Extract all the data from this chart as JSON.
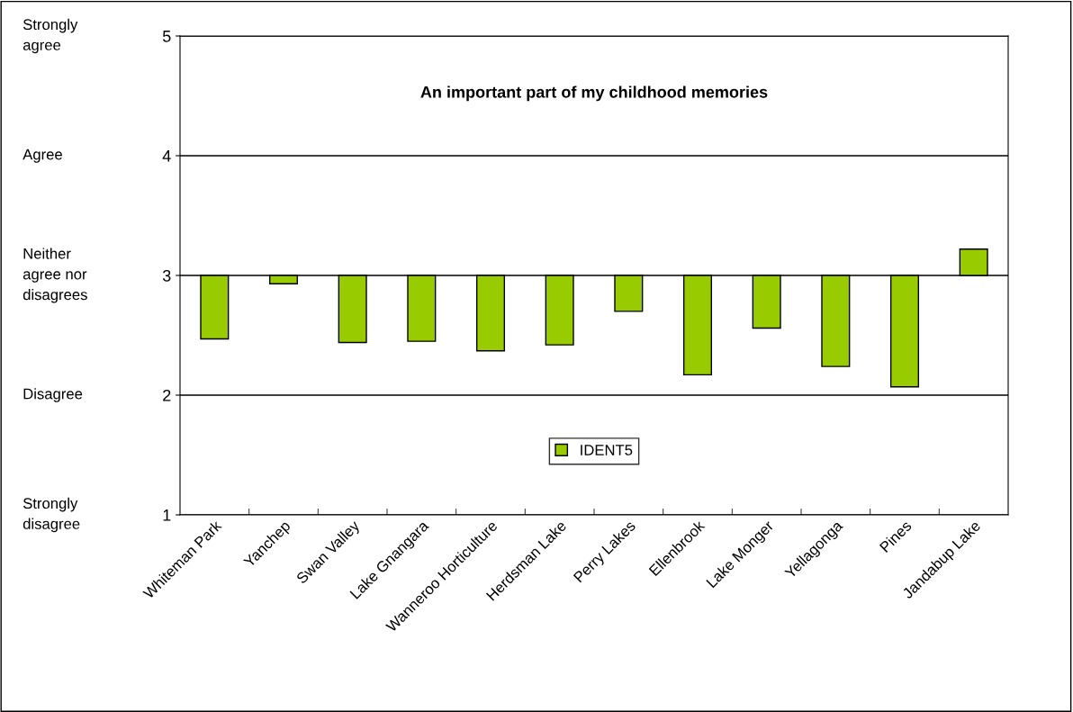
{
  "chart_data": {
    "type": "bar",
    "title": "An important part of my childhood memories",
    "categories": [
      "Whiteman Park",
      "Yanchep",
      "Swan Valley",
      "Lake Gnangara",
      "Wanneroo Horticulture",
      "Herdsman Lake",
      "Perry Lakes",
      "Ellenbrook",
      "Lake Monger",
      "Yellagonga",
      "Pines",
      "Jandabup Lake"
    ],
    "series": [
      {
        "name": "IDENT5",
        "color": "#99cc00",
        "base": [
          3,
          3,
          3,
          3,
          3,
          3,
          3,
          3,
          3,
          3,
          3,
          3
        ],
        "values": [
          -0.53,
          -0.07,
          -0.56,
          -0.55,
          -0.63,
          -0.58,
          -0.3,
          -0.83,
          -0.44,
          -0.76,
          -0.93,
          0.22
        ]
      }
    ],
    "ylim": [
      1,
      5
    ],
    "yticks": [
      1,
      2,
      3,
      4,
      5
    ],
    "grid": "y",
    "legend": "bottom",
    "annotations": [
      "Strongly\nagree",
      "Agree",
      "Neither\nagree nor\ndisagrees",
      "Disagree",
      "Strongly\ndisagree"
    ]
  }
}
